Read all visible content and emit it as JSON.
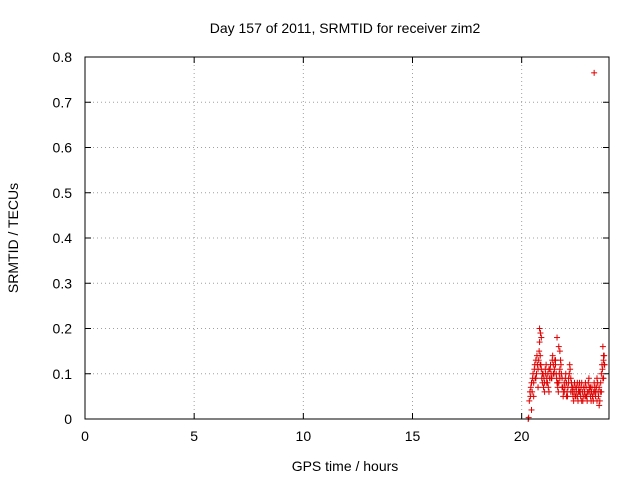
{
  "chart_data": {
    "type": "scatter",
    "title": "Day 157 of 2011, SRMTID for receiver zim2",
    "xlabel": "GPS time / hours",
    "ylabel": "SRMTID / TECUs",
    "xlim": [
      0,
      24
    ],
    "ylim": [
      0,
      0.8
    ],
    "xticks": [
      0,
      5,
      10,
      15,
      20
    ],
    "xtick_labels": [
      "0",
      "5",
      "10",
      "15",
      "20"
    ],
    "yticks": [
      0,
      0.1,
      0.2,
      0.3,
      0.4,
      0.5,
      0.6,
      0.7,
      0.8
    ],
    "ytick_labels": [
      "0",
      "0.1",
      "0.2",
      "0.3",
      "0.4",
      "0.5",
      "0.6",
      "0.7",
      "0.8"
    ],
    "grid": true,
    "marker": "+",
    "color": "#e00000",
    "series": [
      {
        "x": [
          20.3,
          20.32,
          20.35,
          20.38,
          20.4,
          20.42,
          20.45,
          20.48,
          20.5,
          20.52,
          20.55,
          20.58,
          20.6,
          20.62,
          20.65,
          20.68,
          20.7,
          20.72,
          20.75,
          20.78,
          20.8,
          20.82,
          20.85,
          20.88,
          20.9,
          20.92,
          20.95,
          20.98,
          21.0,
          21.02,
          21.05,
          21.08,
          21.1,
          21.12,
          21.15,
          21.18,
          21.2,
          21.22,
          21.25,
          21.28,
          21.3,
          21.32,
          21.35,
          21.38,
          21.4,
          21.42,
          21.45,
          21.48,
          21.5,
          21.52,
          21.55,
          21.58,
          21.6,
          21.62,
          21.65,
          21.68,
          21.7,
          21.72,
          21.75,
          21.78,
          21.8,
          21.82,
          21.85,
          21.88,
          21.9,
          21.92,
          21.95,
          21.98,
          22.0,
          22.02,
          22.05,
          22.08,
          22.1,
          22.12,
          22.15,
          22.18,
          22.2,
          22.22,
          22.25,
          22.28,
          22.3,
          22.32,
          22.35,
          22.38,
          22.4,
          22.42,
          22.45,
          22.48,
          22.5,
          22.52,
          22.55,
          22.58,
          22.6,
          22.62,
          22.65,
          22.68,
          22.7,
          22.72,
          22.75,
          22.78,
          22.8,
          22.82,
          22.85,
          22.88,
          22.9,
          22.92,
          22.95,
          22.98,
          23.0,
          23.02,
          23.05,
          23.08,
          23.1,
          23.12,
          23.15,
          23.18,
          23.2,
          23.22,
          23.25,
          23.28,
          23.3,
          23.32,
          23.35,
          23.38,
          23.4,
          23.42,
          23.45,
          23.48,
          23.5,
          23.52,
          23.55,
          23.58,
          23.6,
          23.62,
          23.65,
          23.68,
          23.7,
          23.72,
          23.75,
          23.78,
          23.8,
          20.45,
          20.55,
          20.65,
          20.75,
          20.85,
          20.95,
          21.05,
          21.15,
          21.25,
          21.35,
          21.45,
          21.55,
          21.65,
          21.75,
          21.85,
          21.95,
          22.05,
          22.15,
          22.25,
          22.35,
          22.45,
          22.55,
          22.65,
          22.75,
          22.85,
          22.95,
          23.05,
          23.15,
          23.25,
          23.35,
          23.45,
          23.55,
          23.65,
          23.75,
          20.82,
          20.86,
          20.9,
          21.62,
          21.7,
          21.75,
          23.72,
          23.75,
          23.78,
          23.32
        ],
        "y": [
          0.0,
          0.003,
          0.04,
          0.06,
          0.05,
          0.07,
          0.08,
          0.06,
          0.09,
          0.1,
          0.08,
          0.11,
          0.12,
          0.09,
          0.13,
          0.1,
          0.14,
          0.12,
          0.11,
          0.13,
          0.15,
          0.17,
          0.14,
          0.12,
          0.11,
          0.09,
          0.08,
          0.1,
          0.07,
          0.09,
          0.08,
          0.11,
          0.1,
          0.12,
          0.09,
          0.08,
          0.1,
          0.07,
          0.06,
          0.09,
          0.11,
          0.12,
          0.1,
          0.09,
          0.13,
          0.14,
          0.12,
          0.1,
          0.11,
          0.13,
          0.12,
          0.1,
          0.09,
          0.08,
          0.07,
          0.06,
          0.08,
          0.1,
          0.11,
          0.13,
          0.12,
          0.1,
          0.09,
          0.07,
          0.05,
          0.06,
          0.08,
          0.07,
          0.09,
          0.1,
          0.08,
          0.06,
          0.05,
          0.07,
          0.09,
          0.1,
          0.12,
          0.11,
          0.09,
          0.08,
          0.07,
          0.06,
          0.05,
          0.04,
          0.06,
          0.08,
          0.07,
          0.05,
          0.06,
          0.07,
          0.05,
          0.04,
          0.06,
          0.07,
          0.08,
          0.06,
          0.05,
          0.07,
          0.08,
          0.06,
          0.04,
          0.05,
          0.07,
          0.06,
          0.05,
          0.08,
          0.07,
          0.05,
          0.04,
          0.06,
          0.08,
          0.09,
          0.07,
          0.06,
          0.05,
          0.04,
          0.06,
          0.07,
          0.05,
          0.04,
          0.06,
          0.08,
          0.07,
          0.05,
          0.06,
          0.07,
          0.09,
          0.08,
          0.06,
          0.05,
          0.03,
          0.04,
          0.06,
          0.08,
          0.1,
          0.12,
          0.11,
          0.09,
          0.13,
          0.14,
          0.12,
          0.02,
          0.05,
          0.09,
          0.07,
          0.12,
          0.1,
          0.06,
          0.08,
          0.11,
          0.09,
          0.1,
          0.13,
          0.08,
          0.09,
          0.07,
          0.06,
          0.05,
          0.08,
          0.06,
          0.07,
          0.05,
          0.08,
          0.06,
          0.04,
          0.07,
          0.05,
          0.06,
          0.07,
          0.05,
          0.06,
          0.04,
          0.07,
          0.06,
          0.09,
          0.2,
          0.19,
          0.18,
          0.18,
          0.16,
          0.15,
          0.16,
          0.14,
          0.12,
          0.765
        ]
      }
    ]
  }
}
